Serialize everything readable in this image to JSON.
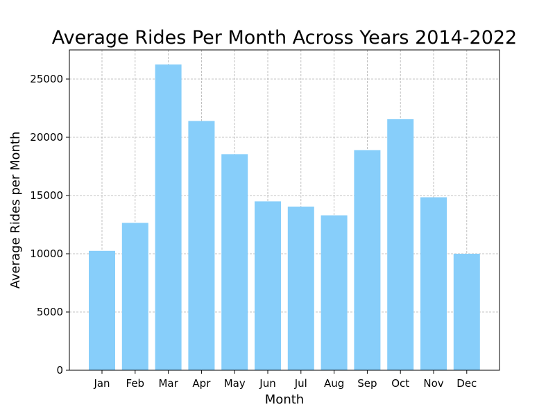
{
  "chart_data": {
    "type": "bar",
    "title": "Average Rides Per Month Across Years 2014-2022",
    "xlabel": "Month",
    "ylabel": "Average Rides per Month",
    "categories": [
      "Jan",
      "Feb",
      "Mar",
      "Apr",
      "May",
      "Jun",
      "Jul",
      "Aug",
      "Sep",
      "Oct",
      "Nov",
      "Dec"
    ],
    "values": [
      10250,
      12650,
      26250,
      21400,
      18550,
      14500,
      14050,
      13300,
      18900,
      21550,
      14850,
      10000
    ],
    "ylim": [
      0,
      27500
    ],
    "yticks": [
      0,
      5000,
      10000,
      15000,
      20000,
      25000
    ],
    "ytick_labels": [
      "0",
      "5000",
      "10000",
      "15000",
      "20000",
      "25000"
    ],
    "grid": true,
    "bar_color": "#87CEFA"
  }
}
